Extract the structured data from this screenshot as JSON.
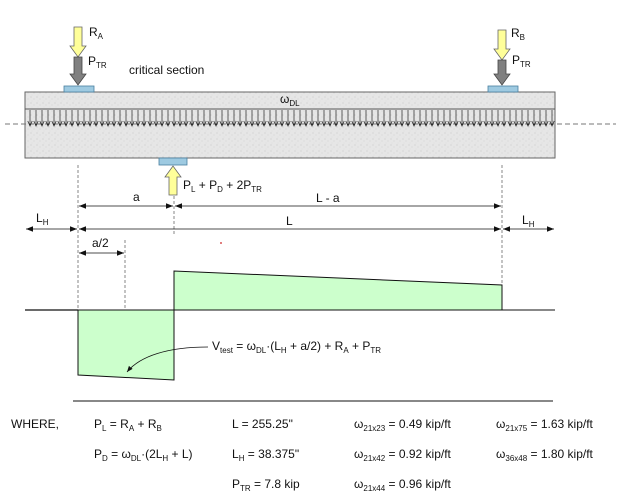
{
  "labels": {
    "ra_main": "R",
    "ra_sub": "A",
    "ptr_main": "P",
    "ptr_sub": "TR",
    "rb_main": "R",
    "rb_sub": "B",
    "ptr2_main": "P",
    "ptr2_sub": "TR",
    "critical_section": "critical section",
    "wdl_main": "ω",
    "wdl_sub": "DL",
    "load_p1": "P",
    "load_s1": "L",
    "load_p2": " + P",
    "load_s2": "D",
    "load_p3": " + 2P",
    "load_s3": "TR",
    "dim_a": "a",
    "dim_l_minus_a": "L - a",
    "lh_left_main": "L",
    "lh_left_sub": "H",
    "dim_l": "L",
    "lh_right_main": "L",
    "lh_right_sub": "H",
    "dim_a2": "a/2",
    "vt_p1": "V",
    "vt_s1": "test",
    "vt_p2": " = ω",
    "vt_s2": "DL",
    "vt_p3": "·(L",
    "vt_s3": "H",
    "vt_p4": " + a/2) + R",
    "vt_s4": "A",
    "vt_p5": " + P",
    "vt_s5": "TR"
  },
  "where": {
    "heading": "WHERE,",
    "pl_p1": "P",
    "pl_s1": "L",
    "pl_p2": " = R",
    "pl_s2": "A",
    "pl_p3": " + R",
    "pl_s3": "B",
    "pd_p1": "P",
    "pd_s1": "D",
    "pd_p2": " = ω",
    "pd_s2": "DL",
    "pd_p3": "·(2L",
    "pd_s3": "H",
    "pd_p4": " + L)",
    "l_val": "L = 255.25\"",
    "lh_p1": "L",
    "lh_s1": "H",
    "lh_p2": " = 38.375\"",
    "ptr_p1": "P",
    "ptr_s1": "TR",
    "ptr_p2": " = 7.8 kip",
    "w1_p1": "ω",
    "w1_s1": "21x23",
    "w1_p2": " = 0.49 kip/ft",
    "w2_p1": "ω",
    "w2_s1": "21x42",
    "w2_p2": " = 0.92 kip/ft",
    "w3_p1": "ω",
    "w3_s1": "21x44",
    "w3_p2": " = 0.96 kip/ft",
    "w4_p1": "ω",
    "w4_s1": "21x75",
    "w4_p2": " = 1.63 kip/ft",
    "w5_p1": "ω",
    "w5_s1": "36x48",
    "w5_p2": " = 1.80 kip/ft"
  },
  "colors": {
    "load_arrow": "#ffff99",
    "reaction_arrow": "#808080",
    "bearing_plate": "#9ecae1",
    "shear_fill": "#ccffcc",
    "beam": "#e8e8e8"
  }
}
